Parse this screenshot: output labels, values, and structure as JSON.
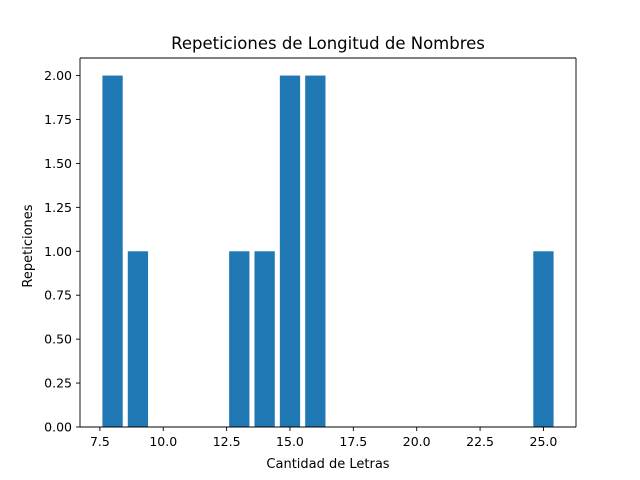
{
  "chart_data": {
    "type": "bar",
    "title": "Repeticiones de Longitud de Nombres",
    "xlabel": "Cantidad de Letras",
    "ylabel": "Repeticiones",
    "x": [
      8,
      9,
      13,
      14,
      15,
      16,
      25
    ],
    "values": [
      2,
      1,
      1,
      1,
      2,
      2,
      1
    ],
    "bar_width": 0.8,
    "xlim": [
      6.715,
      26.285
    ],
    "ylim": [
      0,
      2.1
    ],
    "xticks": [
      7.5,
      10.0,
      12.5,
      15.0,
      17.5,
      20.0,
      22.5,
      25.0
    ],
    "xtick_labels": [
      "7.5",
      "10.0",
      "12.5",
      "15.0",
      "17.5",
      "20.0",
      "22.5",
      "25.0"
    ],
    "yticks": [
      0.0,
      0.25,
      0.5,
      0.75,
      1.0,
      1.25,
      1.5,
      1.75,
      2.0
    ],
    "ytick_labels": [
      "0.00",
      "0.25",
      "0.50",
      "0.75",
      "1.00",
      "1.25",
      "1.50",
      "1.75",
      "2.00"
    ],
    "grid": false,
    "bar_color": "#1f77b4",
    "axis_color": "#000000"
  }
}
